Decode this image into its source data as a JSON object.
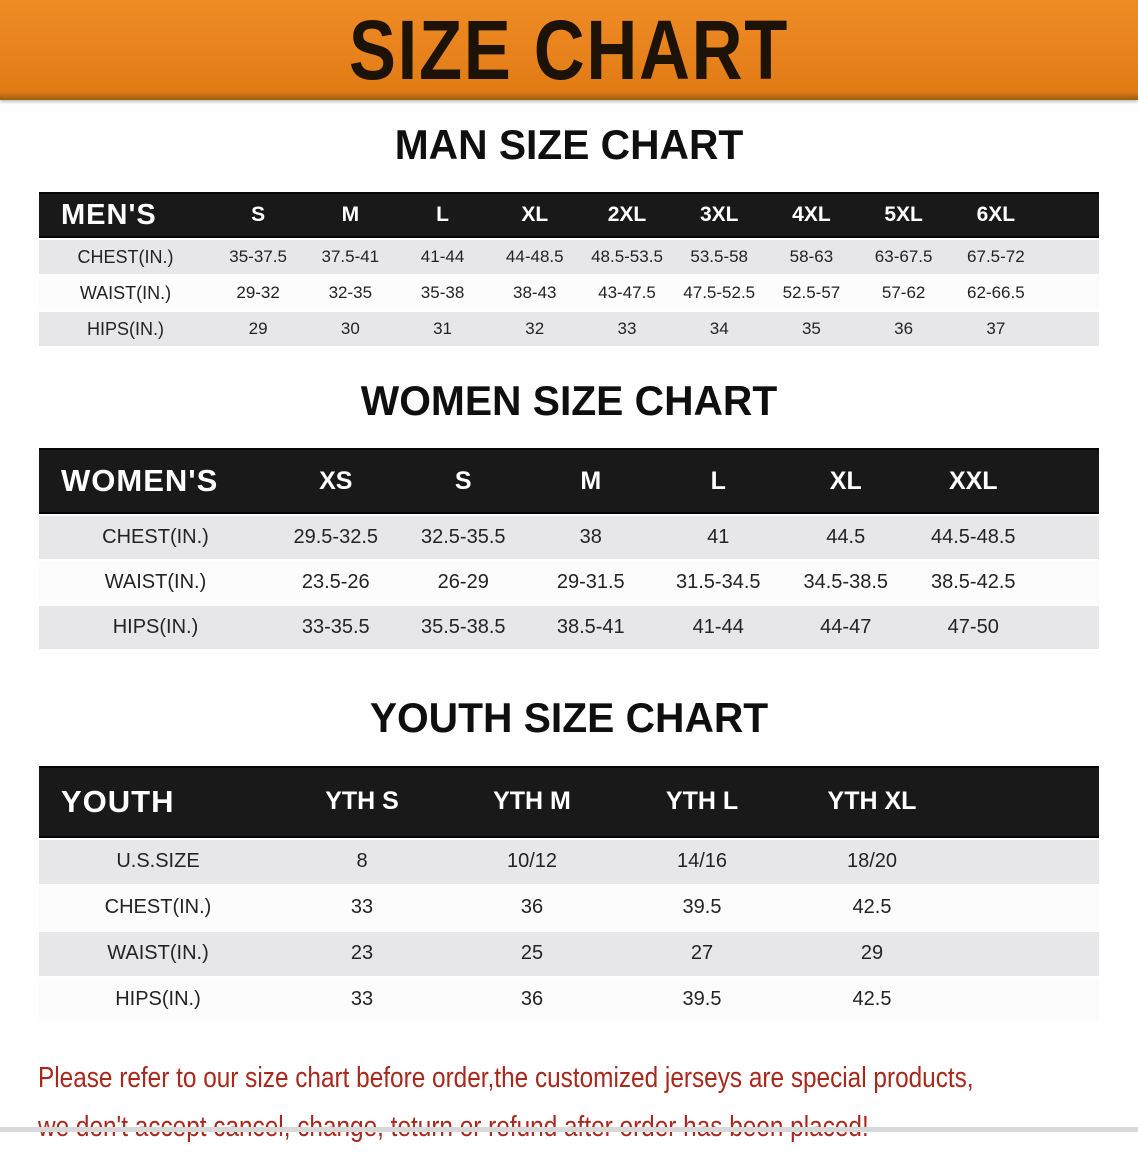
{
  "banner": {
    "title": "SIZE CHART",
    "bg_color": "#e8821c",
    "text_color": "#1c1206"
  },
  "colors": {
    "table_header_bg": "#191919",
    "table_header_text": "#ffffff",
    "row_alt_bg": "#e7e7e9",
    "row_plain_bg": "#fcfcfc",
    "disclaimer_text": "#a8281c"
  },
  "chart_data": [
    {
      "type": "table",
      "title": "MAN SIZE CHART",
      "corner_label": "MEN'S",
      "columns": [
        "S",
        "M",
        "L",
        "XL",
        "2XL",
        "3XL",
        "4XL",
        "5XL",
        "6XL"
      ],
      "rows": [
        {
          "label": "CHEST(IN.)",
          "values": [
            "35-37.5",
            "37.5-41",
            "41-44",
            "44-48.5",
            "48.5-53.5",
            "53.5-58",
            "58-63",
            "63-67.5",
            "67.5-72"
          ]
        },
        {
          "label": "WAIST(IN.)",
          "values": [
            "29-32",
            "32-35",
            "35-38",
            "38-43",
            "43-47.5",
            "47.5-52.5",
            "52.5-57",
            "57-62",
            "62-66.5"
          ]
        },
        {
          "label": "HIPS(IN.)",
          "values": [
            "29",
            "30",
            "31",
            "32",
            "33",
            "34",
            "35",
            "36",
            "37"
          ]
        }
      ]
    },
    {
      "type": "table",
      "title": "WOMEN SIZE CHART",
      "corner_label": "WOMEN'S",
      "columns": [
        "XS",
        "S",
        "M",
        "L",
        "XL",
        "XXL"
      ],
      "rows": [
        {
          "label": "CHEST(IN.)",
          "values": [
            "29.5-32.5",
            "32.5-35.5",
            "38",
            "41",
            "44.5",
            "44.5-48.5"
          ]
        },
        {
          "label": "WAIST(IN.)",
          "values": [
            "23.5-26",
            "26-29",
            "29-31.5",
            "31.5-34.5",
            "34.5-38.5",
            "38.5-42.5"
          ]
        },
        {
          "label": "HIPS(IN.)",
          "values": [
            "33-35.5",
            "35.5-38.5",
            "38.5-41",
            "41-44",
            "44-47",
            "47-50"
          ]
        }
      ]
    },
    {
      "type": "table",
      "title": "YOUTH SIZE CHART",
      "corner_label": "YOUTH",
      "columns": [
        "YTH S",
        "YTH M",
        "YTH L",
        "YTH XL"
      ],
      "rows": [
        {
          "label": "U.S.SIZE",
          "values": [
            "8",
            "10/12",
            "14/16",
            "18/20"
          ]
        },
        {
          "label": "CHEST(IN.)",
          "values": [
            "33",
            "36",
            "39.5",
            "42.5"
          ]
        },
        {
          "label": "WAIST(IN.)",
          "values": [
            "23",
            "25",
            "27",
            "29"
          ]
        },
        {
          "label": "HIPS(IN.)",
          "values": [
            "33",
            "36",
            "39.5",
            "42.5"
          ]
        }
      ]
    }
  ],
  "disclaimer": {
    "line1": "Please refer to our size chart before order,the customized jerseys are special products,",
    "line2": "we don't accept cancel, change, teturn or refund after order has been placed!"
  }
}
